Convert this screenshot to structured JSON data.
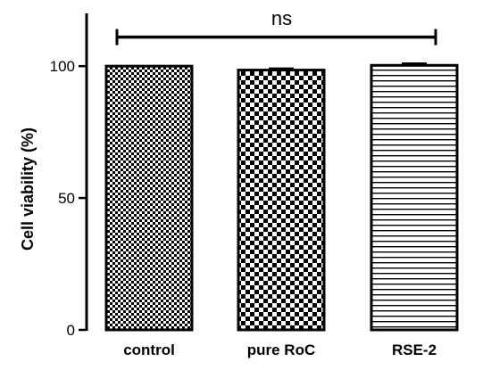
{
  "chart_data": {
    "type": "bar",
    "categories": [
      "control",
      "pure RoC",
      "RSE-2"
    ],
    "values": [
      100,
      98.5,
      100.3
    ],
    "errors": [
      0,
      0.6,
      0.7
    ],
    "patterns": [
      "fine-checker",
      "coarse-checker",
      "horizontal-lines"
    ],
    "title": "",
    "xlabel": "",
    "ylabel": "Cell viability (%)",
    "ylim": [
      0,
      120
    ],
    "yticks": [
      0,
      50,
      100
    ],
    "grid": false,
    "annotations": [
      {
        "text": "ns",
        "from_category": "control",
        "to_category": "RSE-2",
        "y": 110
      }
    ]
  }
}
